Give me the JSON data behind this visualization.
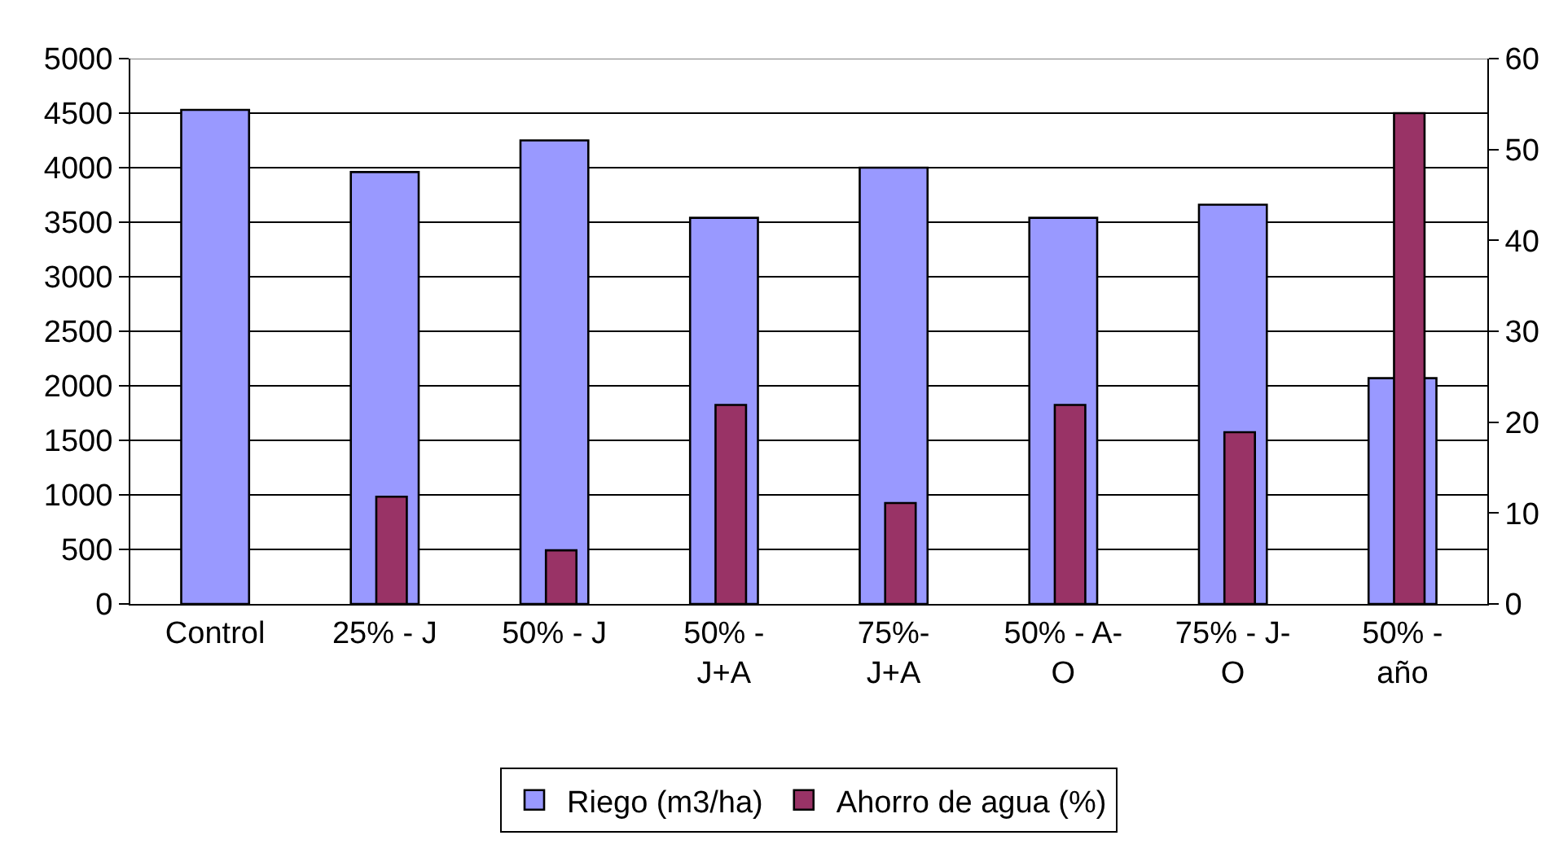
{
  "chart_data": {
    "type": "bar",
    "categories": [
      "Control",
      "25% - J",
      "50% - J",
      "50% -\nJ+A",
      "75%-\nJ+A",
      "50% - A-\nO",
      "75% - J-\nO",
      "50% -\naño"
    ],
    "series": [
      {
        "name": "Riego (m3/ha)",
        "color": "#9999ff",
        "values": [
          4530,
          3960,
          4250,
          3540,
          4000,
          3540,
          3660,
          2070
        ]
      },
      {
        "name": "Ahorro de agua (%)",
        "color": "#993366",
        "axis": "y2",
        "values": [
          null,
          11.8,
          5.9,
          21.9,
          11.1,
          21.9,
          18.9,
          54
        ]
      }
    ],
    "ylim": [
      0,
      5000
    ],
    "yticks": [
      0,
      500,
      1000,
      1500,
      2000,
      2500,
      3000,
      3500,
      4000,
      4500,
      5000
    ],
    "y2lim": [
      0,
      60
    ],
    "y2ticks": [
      0,
      10,
      20,
      30,
      40,
      50,
      60
    ],
    "grid": "y",
    "legend": "bottom"
  }
}
